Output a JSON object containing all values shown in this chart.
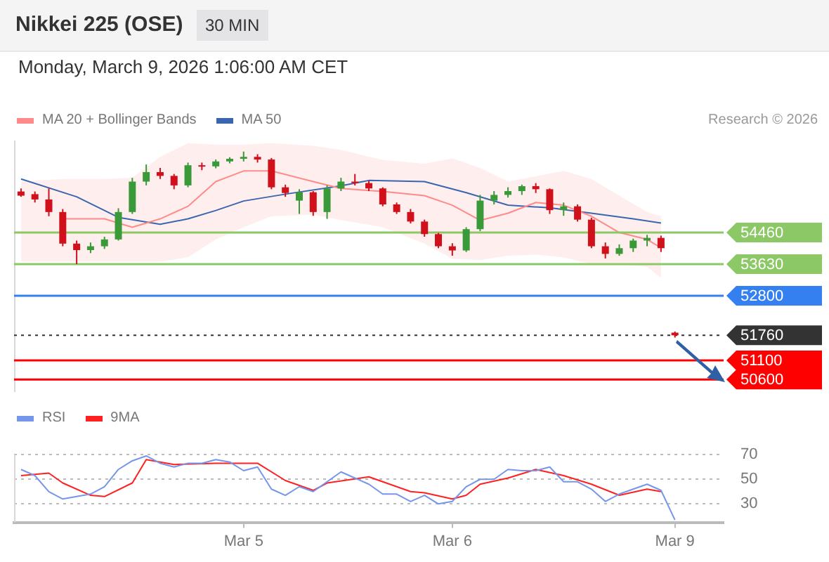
{
  "chart_data": [
    {
      "type": "candlestick",
      "title": "Nikkei 225 (OSE)",
      "subtitle": "Monday, March 9, 2026 1:06:00 AM CET",
      "annotations": [
        "30 MIN",
        "Research © 2026"
      ],
      "categories": [
        null,
        null,
        null,
        null,
        null,
        null,
        null,
        null,
        null,
        null,
        null,
        null,
        null,
        null,
        null,
        null,
        null,
        null,
        null,
        null,
        null,
        null,
        null,
        null,
        null,
        null,
        null,
        null,
        null,
        null,
        null,
        null,
        null,
        null,
        null,
        null,
        null,
        null,
        null,
        null,
        null,
        null,
        null,
        null,
        null,
        null,
        null,
        null,
        null,
        null,
        null
      ],
      "ohlc": [
        [
          55540,
          55620,
          55400,
          55430
        ],
        [
          55470,
          55540,
          55250,
          55330
        ],
        [
          55330,
          55620,
          54890,
          55000
        ],
        [
          55000,
          55080,
          54100,
          54170
        ],
        [
          54170,
          54250,
          53630,
          54000
        ],
        [
          54000,
          54200,
          53920,
          54100
        ],
        [
          54100,
          54350,
          54030,
          54280
        ],
        [
          54280,
          55100,
          54250,
          55000
        ],
        [
          55000,
          55900,
          54950,
          55800
        ],
        [
          55800,
          56250,
          55700,
          56050
        ],
        [
          56050,
          56160,
          55870,
          55950
        ],
        [
          55950,
          56000,
          55600,
          55700
        ],
        [
          55700,
          56300,
          55650,
          56230
        ],
        [
          56230,
          56300,
          56100,
          56200
        ],
        [
          56200,
          56380,
          56150,
          56330
        ],
        [
          56330,
          56440,
          56280,
          56400
        ],
        [
          56400,
          56590,
          56330,
          56450
        ],
        [
          56450,
          56520,
          56300,
          56380
        ],
        [
          56380,
          56420,
          55600,
          55650
        ],
        [
          55650,
          55720,
          55400,
          55500
        ],
        [
          55300,
          55600,
          54950,
          55520
        ],
        [
          55520,
          55550,
          54900,
          55000
        ],
        [
          55000,
          55700,
          54820,
          55620
        ],
        [
          55620,
          55900,
          55550,
          55800
        ],
        [
          55800,
          56000,
          55700,
          55760
        ],
        [
          55760,
          55820,
          55550,
          55620
        ],
        [
          55620,
          55650,
          55150,
          55200
        ],
        [
          55200,
          55250,
          54950,
          55000
        ],
        [
          55000,
          55080,
          54700,
          54750
        ],
        [
          54750,
          54800,
          54350,
          54420
        ],
        [
          54420,
          54450,
          54050,
          54100
        ],
        [
          54100,
          54180,
          53850,
          53990
        ],
        [
          53990,
          54600,
          53950,
          54550
        ],
        [
          54550,
          55450,
          54500,
          55300
        ],
        [
          55300,
          55550,
          55200,
          55450
        ],
        [
          55450,
          55650,
          55380,
          55550
        ],
        [
          55550,
          55720,
          55450,
          55680
        ],
        [
          55680,
          55760,
          55500,
          55600
        ],
        [
          55600,
          55620,
          54950,
          55050
        ],
        [
          55050,
          55250,
          54900,
          55150
        ],
        [
          55150,
          55200,
          54750,
          54800
        ],
        [
          54800,
          54850,
          54050,
          54100
        ],
        [
          54100,
          54200,
          53780,
          53900
        ],
        [
          53900,
          54150,
          53850,
          54050
        ],
        [
          54050,
          54300,
          53950,
          54250
        ],
        [
          54250,
          54400,
          54100,
          54320
        ],
        [
          54320,
          54380,
          53950,
          54050
        ],
        [
          51830,
          51860,
          51700,
          51760
        ],
        null,
        null,
        null
      ],
      "series": [
        {
          "type": "line",
          "name": "MA 20 + Bollinger Bands",
          "color": "#ff8a8a",
          "values": [
            null,
            null,
            null,
            54820,
            null,
            null,
            54820,
            null,
            54600,
            null,
            54820,
            null,
            55150,
            null,
            55800,
            null,
            56080,
            null,
            56080,
            null,
            null,
            55800,
            null,
            55620,
            null,
            null,
            55540,
            null,
            null,
            55430,
            null,
            55180,
            null,
            54780,
            null,
            54970,
            null,
            55250,
            null,
            55180,
            null,
            54890,
            null,
            54460,
            null,
            54280,
            54060,
            null,
            null,
            null,
            null
          ],
          "upper": [
            55800,
            null,
            null,
            55870,
            null,
            null,
            55870,
            null,
            55900,
            null,
            56450,
            null,
            56810,
            null,
            56770,
            null,
            56770,
            null,
            56810,
            null,
            null,
            56740,
            null,
            56630,
            null,
            null,
            56370,
            null,
            null,
            56270,
            null,
            56410,
            null,
            56160,
            null,
            55800,
            null,
            55940,
            null,
            56080,
            null,
            55870,
            null,
            55430,
            null,
            55000,
            54890,
            null,
            null,
            null,
            null
          ],
          "lower": [
            53700,
            null,
            null,
            53700,
            null,
            null,
            53700,
            null,
            53700,
            null,
            53700,
            null,
            53810,
            null,
            54280,
            null,
            54600,
            null,
            54890,
            null,
            null,
            54930,
            null,
            54790,
            null,
            null,
            54600,
            null,
            null,
            54170,
            null,
            53770,
            null,
            53740,
            null,
            53850,
            null,
            53880,
            null,
            53810,
            null,
            53630,
            null,
            53630,
            null,
            53560,
            53270,
            null,
            null,
            null,
            null
          ]
        },
        {
          "type": "line",
          "name": "MA 50",
          "color": "#3a66b0",
          "values": [
            55870,
            null,
            null,
            null,
            55400,
            null,
            null,
            54860,
            null,
            null,
            54680,
            null,
            54820,
            null,
            55040,
            null,
            55290,
            null,
            null,
            55470,
            null,
            null,
            null,
            55690,
            null,
            55830,
            null,
            null,
            null,
            55800,
            null,
            null,
            55510,
            null,
            null,
            55180,
            null,
            null,
            55110,
            null,
            null,
            54970,
            null,
            null,
            54820,
            null,
            54710,
            null,
            null,
            null,
            null
          ]
        }
      ],
      "ref_lines": [
        {
          "axis": "y",
          "value": 54460,
          "label": "54460",
          "color": "#8cc865"
        },
        {
          "axis": "y",
          "value": 53630,
          "label": "53630",
          "color": "#8cc865"
        },
        {
          "axis": "y",
          "value": 52800,
          "label": "52800",
          "color": "#3580f0"
        },
        {
          "axis": "y",
          "value": 51760,
          "label": "51760",
          "color": "#333333",
          "line_style": "dotted"
        },
        {
          "axis": "y",
          "value": 51100,
          "label": "51100",
          "color": "#ff0000"
        },
        {
          "axis": "y",
          "value": 50600,
          "label": "50600",
          "color": "#ff0000"
        }
      ],
      "ylim": [
        50270,
        56880
      ],
      "legend": "top left",
      "tick_labels": false
    },
    {
      "type": "line",
      "categories": [
        null,
        null,
        null,
        null,
        null,
        null,
        null,
        null,
        null,
        null,
        null,
        null,
        null,
        null,
        null,
        null,
        "Mar 5",
        null,
        null,
        null,
        null,
        null,
        null,
        null,
        null,
        null,
        null,
        null,
        null,
        null,
        null,
        "Mar 6",
        null,
        null,
        null,
        null,
        null,
        null,
        null,
        null,
        null,
        null,
        null,
        null,
        null,
        null,
        null,
        "Mar 9",
        null,
        null,
        null
      ],
      "series": [
        {
          "name": "RSI",
          "color": "#7596ea",
          "values": [
            58,
            53,
            40,
            34,
            36,
            38,
            44,
            58,
            65,
            69,
            63,
            60,
            63,
            63,
            66,
            64,
            57,
            60,
            42,
            37,
            44,
            40,
            48,
            56,
            51,
            46,
            38,
            38,
            32,
            37,
            30,
            32,
            44,
            50,
            50,
            58,
            57,
            57,
            60,
            48,
            48,
            42,
            32,
            38,
            42,
            46,
            41,
            17,
            null,
            null,
            null
          ]
        },
        {
          "name": "9MA",
          "color": "#ff2020",
          "values": [
            53,
            null,
            55,
            47,
            null,
            37,
            36,
            null,
            47,
            66,
            null,
            62,
            null,
            null,
            63,
            null,
            null,
            63,
            null,
            49,
            null,
            41,
            47,
            null,
            null,
            52,
            null,
            null,
            40,
            39,
            null,
            34,
            37,
            46,
            null,
            51,
            null,
            58,
            null,
            53,
            null,
            46,
            null,
            37,
            null,
            42,
            40,
            null,
            null,
            null,
            null
          ]
        }
      ],
      "ylim": [
        15,
        70
      ],
      "yticks": [
        30,
        50,
        70
      ],
      "grid": "y",
      "legend": "top left"
    }
  ]
}
